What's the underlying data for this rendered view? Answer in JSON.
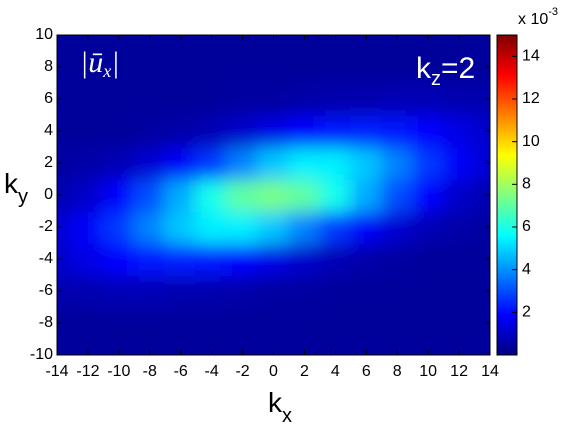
{
  "chart_data": {
    "type": "contourf",
    "x": [
      -14,
      -12,
      -10,
      -8,
      -6,
      -4,
      -2,
      0,
      2,
      4,
      6,
      8,
      10,
      12,
      14
    ],
    "y": [
      -10,
      -8,
      -6,
      -4,
      -2,
      0,
      2,
      4,
      6,
      8,
      10
    ],
    "z": [
      [
        0.4,
        0.4,
        0.4,
        0.4,
        0.4,
        0.4,
        0.4,
        0.4,
        0.4,
        0.4,
        0.4,
        0.4,
        0.4,
        0.4,
        0.4
      ],
      [
        0.4,
        0.4,
        0.4,
        0.4,
        0.4,
        0.4,
        0.4,
        0.4,
        0.4,
        0.4,
        0.4,
        0.4,
        0.4,
        0.4,
        0.4
      ],
      [
        0.7,
        0.7,
        0.8,
        0.8,
        0.7,
        0.7,
        0.6,
        0.5,
        0.5,
        0.4,
        0.4,
        0.4,
        0.4,
        0.4,
        0.4
      ],
      [
        1.1,
        1.5,
        1.9,
        2.2,
        2.3,
        2.2,
        1.9,
        1.5,
        1.1,
        0.8,
        0.6,
        0.5,
        0.4,
        0.4,
        0.4
      ],
      [
        1.2,
        1.8,
        2.7,
        3.8,
        4.8,
        5.4,
        5.4,
        4.8,
        3.8,
        2.7,
        1.8,
        1.2,
        0.8,
        0.6,
        0.5
      ],
      [
        0.7,
        1.1,
        1.9,
        3.0,
        4.4,
        5.9,
        7.0,
        7.4,
        7.0,
        5.9,
        4.4,
        3.0,
        1.9,
        1.1,
        0.7
      ],
      [
        0.5,
        0.6,
        0.8,
        1.2,
        1.8,
        2.7,
        3.8,
        4.8,
        5.4,
        5.4,
        4.8,
        3.8,
        2.7,
        1.8,
        1.2
      ],
      [
        0.4,
        0.4,
        0.4,
        0.5,
        0.6,
        0.8,
        1.1,
        1.5,
        1.9,
        2.2,
        2.3,
        2.2,
        1.9,
        1.5,
        1.1
      ],
      [
        0.4,
        0.4,
        0.4,
        0.4,
        0.4,
        0.4,
        0.5,
        0.5,
        0.6,
        0.7,
        0.7,
        0.8,
        0.8,
        0.7,
        0.7
      ],
      [
        0.4,
        0.4,
        0.4,
        0.4,
        0.4,
        0.4,
        0.4,
        0.4,
        0.4,
        0.4,
        0.4,
        0.4,
        0.4,
        0.4,
        0.4
      ],
      [
        0.4,
        0.4,
        0.4,
        0.4,
        0.4,
        0.4,
        0.4,
        0.4,
        0.4,
        0.4,
        0.4,
        0.4,
        0.4,
        0.4,
        0.4
      ]
    ],
    "colormap": "jet",
    "xlim": [
      -14,
      14
    ],
    "ylim": [
      -10,
      10
    ],
    "xticks": [
      -14,
      -12,
      -10,
      -8,
      -6,
      -4,
      -2,
      0,
      2,
      4,
      6,
      8,
      10,
      12,
      14
    ],
    "yticks": [
      -10,
      -8,
      -6,
      -4,
      -2,
      0,
      2,
      4,
      6,
      8,
      10
    ],
    "clim": [
      0,
      15
    ],
    "cticks": [
      2,
      4,
      6,
      8,
      10,
      12,
      14
    ],
    "colorbar_multiplier": {
      "main": "x 10",
      "sup": "-3"
    },
    "xlabel": {
      "main": "k",
      "sub": "x"
    },
    "ylabel": {
      "main": "k",
      "sub": "y"
    },
    "annotations": [
      {
        "pre": "|ū",
        "sub": "x",
        "post": "|"
      },
      {
        "main": "k",
        "sub": "z",
        "post": "=2"
      }
    ]
  }
}
